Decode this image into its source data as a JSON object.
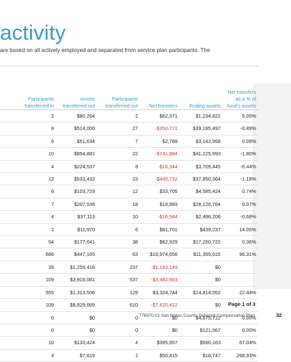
{
  "page": {
    "title": "activity",
    "intro": "are based on all actively employed and separated from service plan participants. The"
  },
  "table": {
    "headers": [
      [
        "Participants",
        "transferred in"
      ],
      [
        "Assets",
        "transferred out"
      ],
      [
        "Participants",
        "transferred out"
      ],
      [
        "",
        "Net transfers"
      ],
      [
        "",
        "Ending assets"
      ],
      [
        "Net transfers",
        "as a % of",
        "fund's assets"
      ]
    ],
    "rows": [
      [
        "2",
        "$80,264",
        "2",
        "$62,371",
        "$1,234,822",
        "5.05%"
      ],
      [
        "8",
        "$514,000",
        "27",
        "-$350,771",
        "$39,195,497",
        "-0.89%"
      ],
      [
        "6",
        "$51,634",
        "7",
        "$2,789",
        "$3,142,958",
        "0.09%"
      ],
      [
        "10",
        "$854,881",
        "22",
        "-$741,884",
        "$41,225,993",
        "-1.80%"
      ],
      [
        "4",
        "$224,537",
        "8",
        "-$16,344",
        "$3,709,445",
        "-0.44%"
      ],
      [
        "12",
        "$533,432",
        "23",
        "-$445,732",
        "$37,850,364",
        "-1.18%"
      ],
      [
        "6",
        "$103,729",
        "12",
        "$33,705",
        "$4,585,424",
        "0.74%"
      ],
      [
        "7",
        "$207,536",
        "18",
        "$18,983",
        "$28,126,784",
        "0.07%"
      ],
      [
        "4",
        "$37,113",
        "10",
        "-$16,944",
        "$2,496,206",
        "-0.68%"
      ],
      [
        "2",
        "$11,970",
        "6",
        "$61,701",
        "$439,237",
        "14.05%"
      ],
      [
        "54",
        "$177,641",
        "38",
        "$62,929",
        "$17,250,722",
        "0.36%"
      ],
      [
        "686",
        "$447,165",
        "63",
        "$10,974,656",
        "$11,395,615",
        "96.31%"
      ],
      [
        "39",
        "$1,259,418",
        "237",
        "-$1,183,149",
        "$0",
        ""
      ],
      [
        "109",
        "$3,916,061",
        "537",
        "-$3,482,663",
        "$0",
        ""
      ],
      [
        "555",
        "$1,313,506",
        "129",
        "$3,324,744",
        "$14,814,052",
        "22.44%"
      ],
      [
        "109",
        "$8,829,669",
        "610",
        "-$7,620,422",
        "$0",
        ""
      ],
      [
        "0",
        "$0",
        "0",
        "$0",
        "$4,675,712",
        "0.00%"
      ],
      [
        "0",
        "$0",
        "0",
        "$0",
        "$121,567",
        "0.00%"
      ],
      [
        "10",
        "$133,424",
        "4",
        "$395,657",
        "$590,163",
        "67.04%"
      ],
      [
        "4",
        "$7,819",
        "1",
        "$50,415",
        "$18,747",
        "268.93%"
      ]
    ]
  },
  "footer": {
    "page_label": "Page 1 of 3",
    "plan_name": "776970-01 San Mateo County Deferred Compensation Plan",
    "page_number": "32"
  },
  "colors": {
    "accent": "#3a9bc8",
    "negative": "#d0312d",
    "side_panel": "#f2f2f2"
  }
}
